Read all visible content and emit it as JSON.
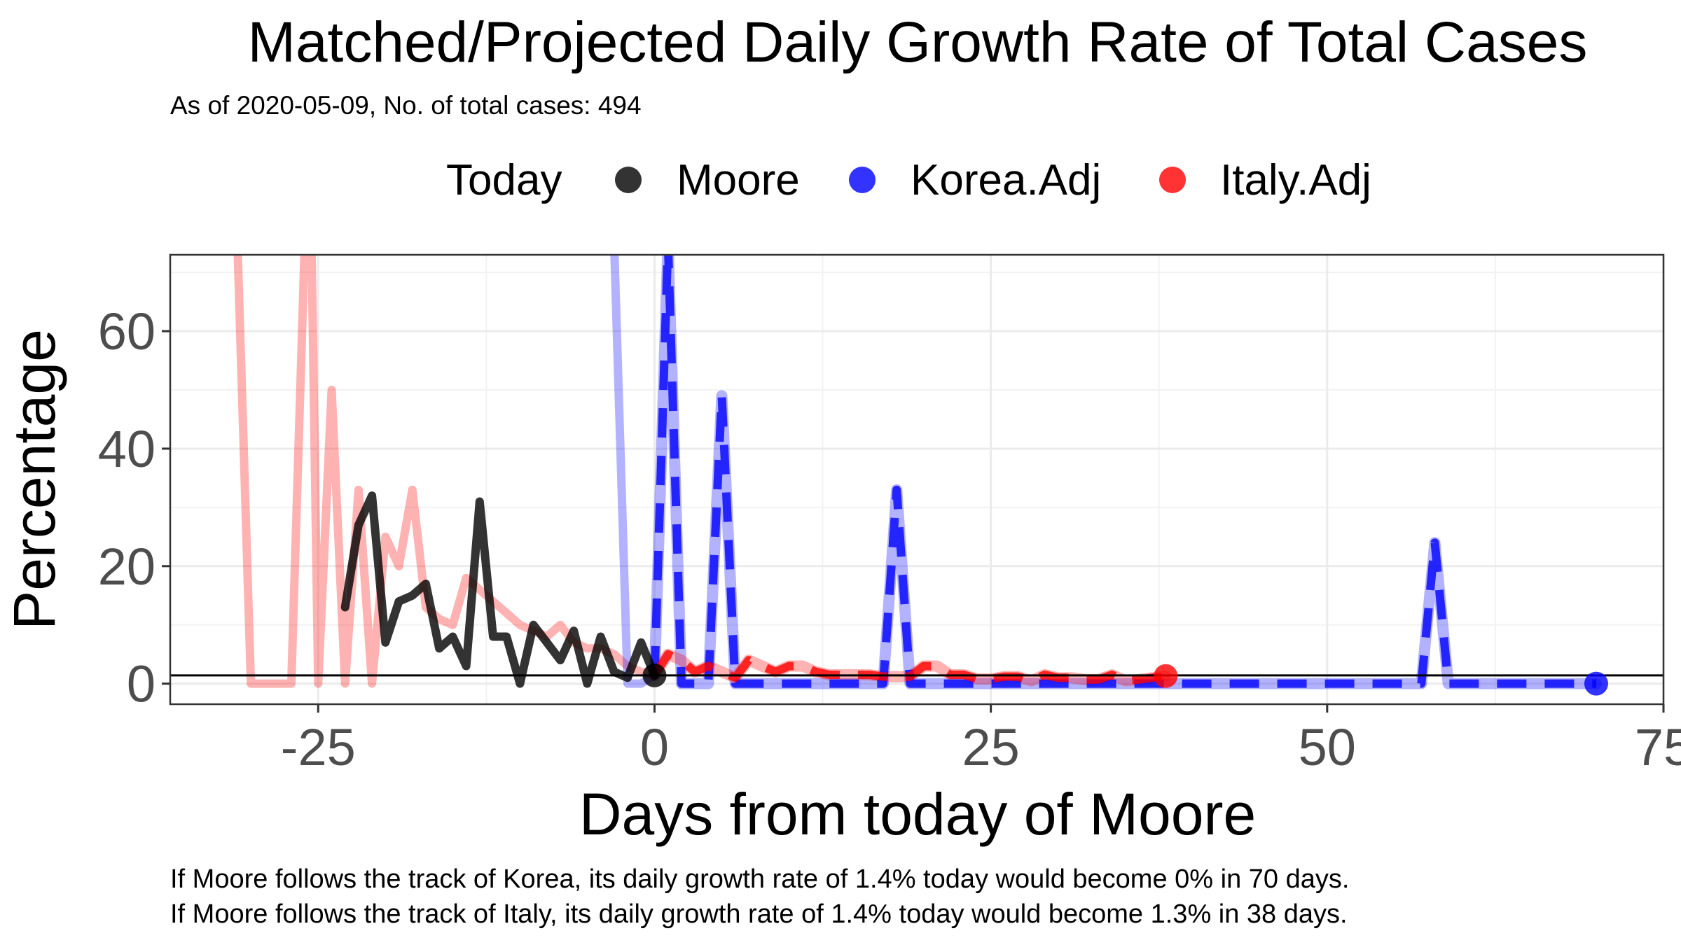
{
  "chart_data": {
    "type": "line",
    "title": "Matched/Projected Daily Growth Rate of Total Cases",
    "subtitle": "As of 2020-05-09, No. of total cases: 494",
    "xlabel": "Days from today of Moore",
    "ylabel": "Percentage",
    "xlim": [
      -36,
      75
    ],
    "ylim": [
      -3.5,
      73
    ],
    "x_ticks": [
      -25,
      0,
      25,
      50,
      75
    ],
    "x_tick_labels": [
      "-25",
      "0",
      "25",
      "50",
      "75"
    ],
    "y_ticks": [
      0,
      20,
      40,
      60
    ],
    "y_tick_labels": [
      "0",
      "20",
      "40",
      "60"
    ],
    "reference_line": 1.4,
    "grid": true,
    "legend": {
      "title": "Today",
      "position": "top",
      "entries": [
        {
          "label": "Moore",
          "color": "#000000"
        },
        {
          "label": "Korea.Adj",
          "color": "#0000ff"
        },
        {
          "label": "Italy.Adj",
          "color": "#ff0000"
        }
      ]
    },
    "series": [
      {
        "name": "Italy.Adj",
        "color": "#ff0000",
        "matched_x": [
          -31,
          -30,
          -29,
          -28,
          -27,
          -26,
          -25.5,
          -25,
          -24,
          -23,
          -22,
          -21,
          -20,
          -19,
          -18,
          -17,
          -16,
          -15,
          -14,
          -13,
          -12,
          -11,
          -10,
          -9,
          -8,
          -7,
          -6,
          -5,
          -4,
          -3,
          -2,
          -1,
          0
        ],
        "matched_y": [
          75,
          0,
          0,
          0,
          0,
          75,
          75,
          0,
          50,
          0,
          33,
          0,
          25,
          20,
          33,
          13,
          11,
          10,
          18,
          16,
          14,
          12,
          10,
          9,
          8,
          10,
          7,
          6,
          6,
          5,
          3,
          2,
          1.4
        ],
        "projected_x": [
          0,
          1,
          2,
          3,
          4,
          5,
          6,
          7,
          8,
          9,
          10,
          11,
          12,
          13,
          14,
          15,
          16,
          17,
          18,
          19,
          20,
          21,
          22,
          23,
          24,
          25,
          26,
          27,
          28,
          29,
          30,
          31,
          32,
          33,
          34,
          35,
          36,
          37,
          38
        ],
        "projected_y": [
          1.4,
          5,
          4,
          2,
          3,
          2,
          1,
          4,
          3,
          2,
          3,
          3,
          2,
          1.5,
          1.5,
          1.5,
          1.5,
          1.2,
          1.2,
          1.2,
          3,
          3,
          1.5,
          1.5,
          0.8,
          0.8,
          1.2,
          1.2,
          0.5,
          1.5,
          1,
          1,
          0.7,
          0.7,
          1.5,
          0.5,
          0.7,
          1,
          1.3
        ],
        "end_point": {
          "x": 38,
          "y": 1.3
        }
      },
      {
        "name": "Korea.Adj",
        "color": "#0000ff",
        "matched_x": [
          -3,
          -2,
          -1,
          0
        ],
        "matched_y": [
          75,
          0,
          0,
          1.4
        ],
        "projected_x": [
          0,
          1,
          2,
          3,
          4,
          5,
          6,
          7,
          8,
          9,
          10,
          11,
          12,
          13,
          14,
          15,
          16,
          17,
          18,
          19,
          20,
          21,
          56,
          57,
          58,
          59,
          60,
          70
        ],
        "projected_y": [
          1.4,
          75,
          0,
          0,
          0,
          49,
          0,
          0,
          0,
          0,
          0,
          0,
          0,
          0,
          0,
          0,
          0,
          0,
          33,
          0,
          0,
          0,
          0,
          0,
          24,
          0,
          0,
          0
        ],
        "end_point": {
          "x": 70,
          "y": 0
        }
      },
      {
        "name": "Moore",
        "color": "#000000",
        "x": [
          -23,
          -22,
          -21,
          -20,
          -19,
          -18,
          -17,
          -16,
          -15,
          -14,
          -13,
          -12,
          -11,
          -10,
          -9,
          -8,
          -7,
          -6,
          -5,
          -4,
          -3,
          -2,
          -1,
          0
        ],
        "y": [
          13,
          27,
          32,
          7,
          14,
          15,
          17,
          6,
          8,
          3,
          31,
          8,
          8,
          0,
          10,
          7,
          4,
          9,
          0,
          8,
          2,
          1,
          7,
          1.4
        ],
        "end_point": {
          "x": 0,
          "y": 1.4
        }
      }
    ]
  },
  "footnotes": [
    "If Moore follows the track of Korea, its daily growth rate of 1.4% today would become 0% in 70 days.",
    "If Moore follows the track of Italy, its daily growth rate of 1.4% today would become 1.3% in 38 days."
  ]
}
